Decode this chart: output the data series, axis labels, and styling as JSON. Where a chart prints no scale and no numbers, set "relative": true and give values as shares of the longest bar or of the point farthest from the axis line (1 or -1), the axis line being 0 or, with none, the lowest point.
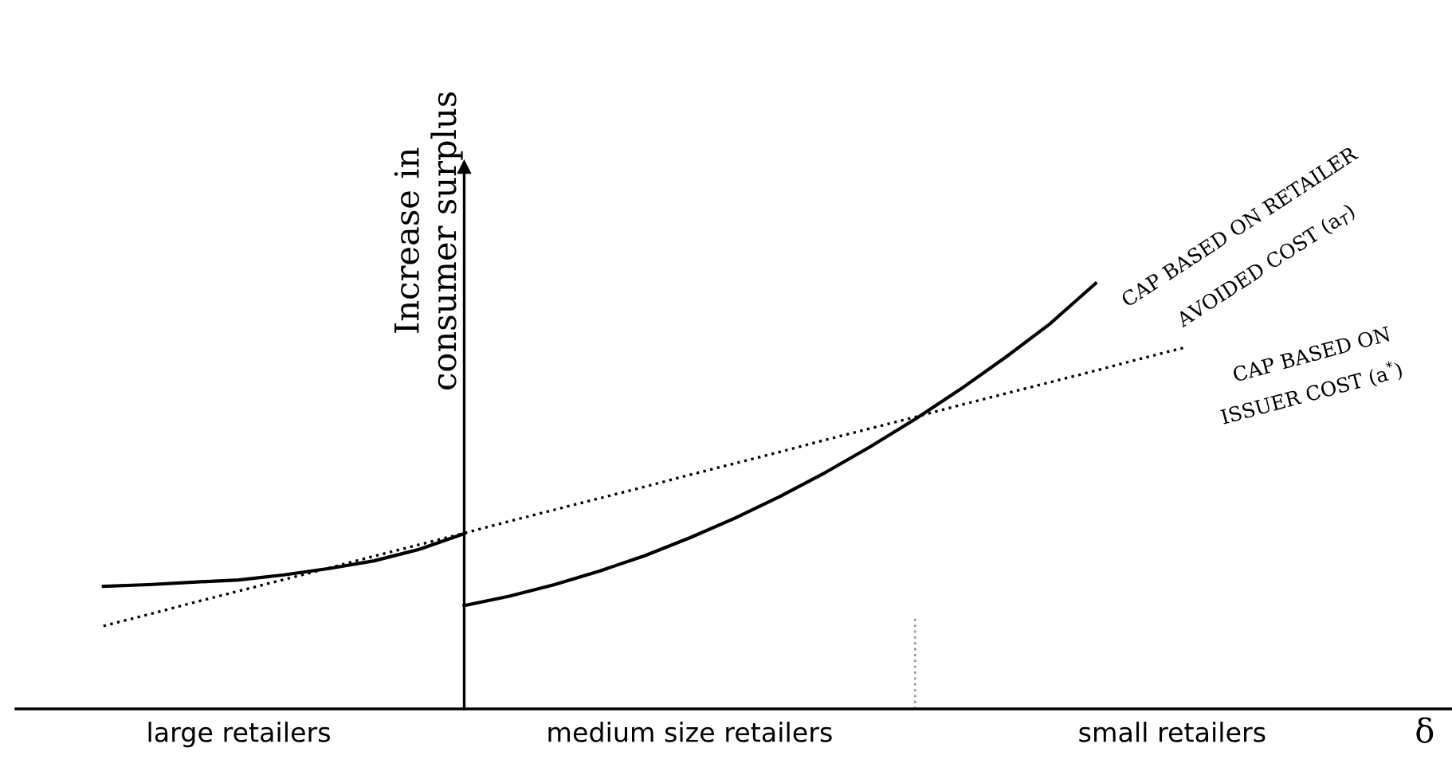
{
  "chart_data": {
    "type": "line",
    "relative": true,
    "ylabel": "Increase in\nconsumer surplus",
    "categories": [
      null,
      null,
      null,
      null,
      null,
      null,
      null,
      null,
      null,
      null,
      null,
      null,
      null,
      null,
      null,
      null,
      null,
      null,
      null,
      null,
      null,
      null,
      null,
      null,
      null
    ],
    "series": [
      {
        "color": "#000000",
        "line_style": "solid",
        "values": [
          0.288,
          0.292,
          0.298,
          0.303,
          0.315,
          0.33,
          0.348,
          0.375,
          0.412,
          null,
          null,
          null,
          null,
          null,
          null,
          null,
          null,
          null,
          null,
          null,
          null,
          null,
          null,
          null,
          null
        ]
      },
      {
        "color": "#000000",
        "line_style": "solid",
        "values": [
          null,
          null,
          null,
          null,
          null,
          null,
          null,
          null,
          0.243,
          0.265,
          0.292,
          0.324,
          0.36,
          0.402,
          0.448,
          0.499,
          0.555,
          0.616,
          0.681,
          0.751,
          0.826,
          0.906,
          1.0,
          null,
          null
        ]
      },
      {
        "color": "#000000",
        "line_style": "dotted",
        "values": [
          0.195,
          0.222,
          0.25,
          0.277,
          0.304,
          0.331,
          0.359,
          0.386,
          0.413,
          0.441,
          0.468,
          0.495,
          0.522,
          0.55,
          0.577,
          0.604,
          0.632,
          0.659,
          0.686,
          0.714,
          0.741,
          0.768,
          0.795,
          0.823,
          0.85
        ]
      }
    ],
    "annotations": [
      "large retailers",
      "medium size retailers",
      "small retailers",
      "CAP BASED ON RETAILER",
      "AVOIDED COST (a$_{T}$)",
      "CAP BASED ON",
      "ISSUER COST (a$^{*}$)",
      "δ"
    ]
  }
}
